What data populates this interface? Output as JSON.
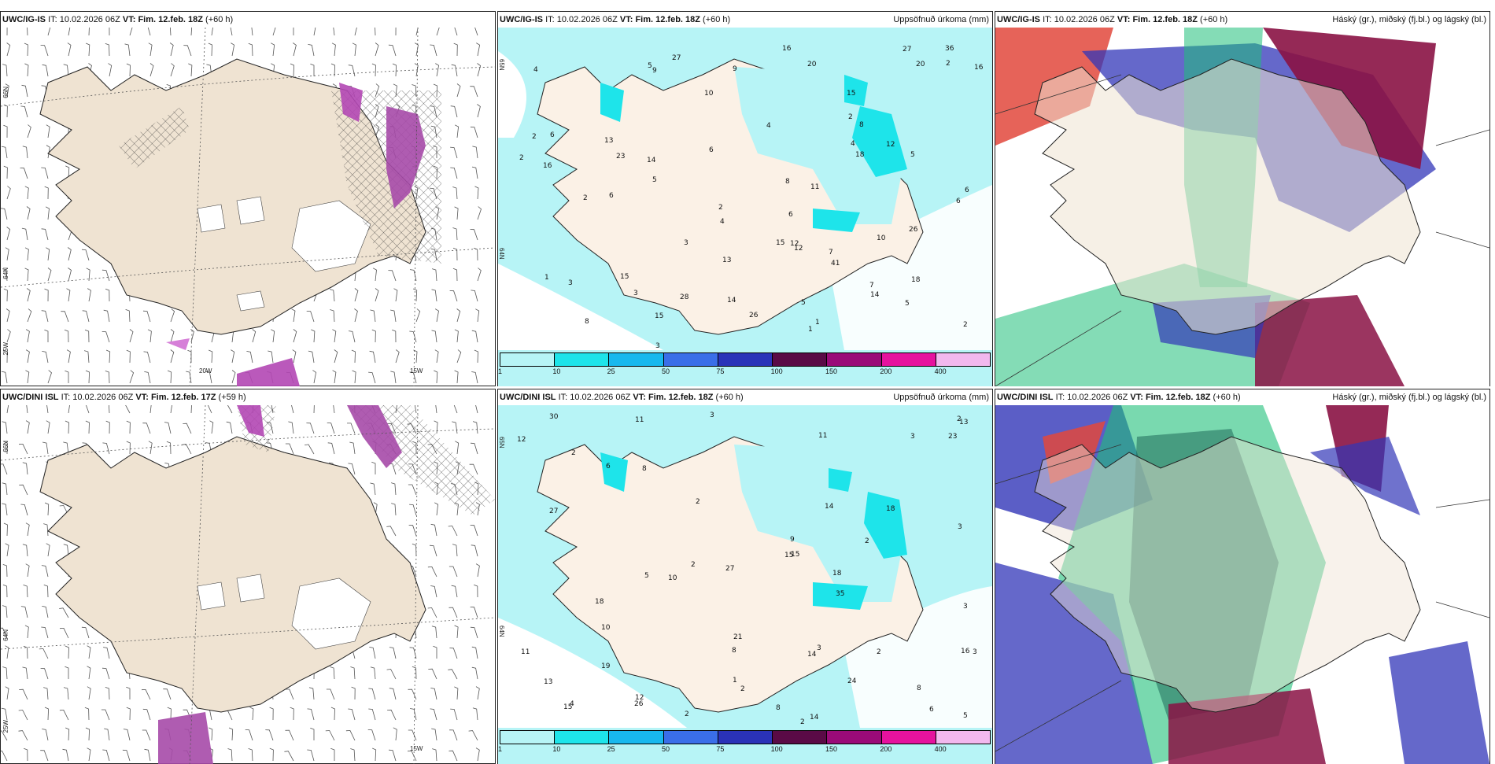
{
  "panels": [
    {
      "id": "a",
      "model": "UWC/IG-IS",
      "it_label": "IT:",
      "it_value": "10.02.2026 06Z",
      "vt_label": "VT:",
      "vt_value": "Fim. 12.feb. 18Z",
      "lead": "(+60 h)",
      "product": "",
      "coords": [
        "66N",
        "64N",
        "25W",
        "20W",
        "15W"
      ]
    },
    {
      "id": "b",
      "model": "UWC/IG-IS",
      "it_label": "IT:",
      "it_value": "10.02.2026 06Z",
      "vt_label": "VT:",
      "vt_value": "Fim. 12.feb. 18Z",
      "lead": "(+60 h)",
      "product": "Uppsöfnuð úrkoma (mm)",
      "coords": [
        "65N",
        "64N"
      ]
    },
    {
      "id": "c",
      "model": "UWC/IG-IS",
      "it_label": "IT:",
      "it_value": "10.02.2026 06Z",
      "vt_label": "VT:",
      "vt_value": "Fim. 12.feb. 18Z",
      "lead": "(+60 h)",
      "product": "Háský (gr.), miðský (fj.bl.) og lágský (bl.)",
      "coords": []
    },
    {
      "id": "d",
      "model": "UWC/DINI ISL",
      "it_label": "IT:",
      "it_value": "10.02.2026 06Z",
      "vt_label": "VT:",
      "vt_value": "Fim. 12.feb. 17Z",
      "lead": "(+59 h)",
      "product": "",
      "coords": [
        "66N",
        "64N",
        "25W",
        "15W"
      ]
    },
    {
      "id": "e",
      "model": "UWC/DINI ISL",
      "it_label": "IT:",
      "it_value": "10.02.2026 06Z",
      "vt_label": "VT:",
      "vt_value": "Fim. 12.feb. 18Z",
      "lead": "(+60 h)",
      "product": "Uppsöfnuð úrkoma (mm)",
      "coords": [
        "65N",
        "64N"
      ]
    },
    {
      "id": "f",
      "model": "UWC/DINI ISL",
      "it_label": "IT:",
      "it_value": "10.02.2026 06Z",
      "vt_label": "VT:",
      "vt_value": "Fim. 12.feb. 18Z",
      "lead": "(+60 h)",
      "product": "Háský (gr.), miðský (fj.bl.) og lágský (bl.)",
      "coords": []
    }
  ],
  "colorbar": {
    "labels": [
      "1",
      "10",
      "25",
      "50",
      "75",
      "100",
      "150",
      "200",
      "400"
    ],
    "colors": [
      "#b7f4f6",
      "#1ee4ea",
      "#18b8ee",
      "#3a6ee8",
      "#2a32b8",
      "#5a0a46",
      "#9a0a78",
      "#e6129e",
      "#f2b8ee"
    ]
  },
  "precip_values_ig": [
    "1",
    "9",
    "15",
    "13",
    "12",
    "5",
    "6",
    "5",
    "4",
    "3",
    "3",
    "2",
    "2",
    "12",
    "18",
    "27",
    "16",
    "20",
    "10",
    "5",
    "7",
    "12",
    "15",
    "14",
    "11",
    "8",
    "6",
    "23",
    "26",
    "10",
    "41",
    "36",
    "15",
    "28",
    "27",
    "14",
    "16",
    "6",
    "6",
    "7",
    "9",
    "8",
    "16",
    "18",
    "20",
    "26",
    "15",
    "13",
    "6",
    "2",
    "3",
    "4",
    "14",
    "2",
    "4",
    "2",
    "5",
    "6",
    "3",
    "1",
    "2",
    "1",
    "4",
    "2",
    "5",
    "8"
  ],
  "precip_values_dini": [
    "2",
    "2",
    "12",
    "24",
    "11",
    "2",
    "5",
    "6",
    "3",
    "2",
    "3",
    "2",
    "2",
    "8",
    "11",
    "15",
    "27",
    "26",
    "10",
    "12",
    "14",
    "13",
    "9",
    "15",
    "18",
    "18",
    "11",
    "10",
    "30",
    "35",
    "27",
    "14",
    "21",
    "23",
    "19",
    "18",
    "16",
    "13",
    "14",
    "8",
    "15",
    "2",
    "3",
    "4",
    "8",
    "3",
    "3",
    "8",
    "6",
    "1",
    "2",
    "3",
    "5",
    "2"
  ],
  "cloud_colors": {
    "high": "#1fbf7a",
    "mid": "#3236b8",
    "low": "#8a1244",
    "red": "#e2483c",
    "land": "#efe3d2"
  }
}
